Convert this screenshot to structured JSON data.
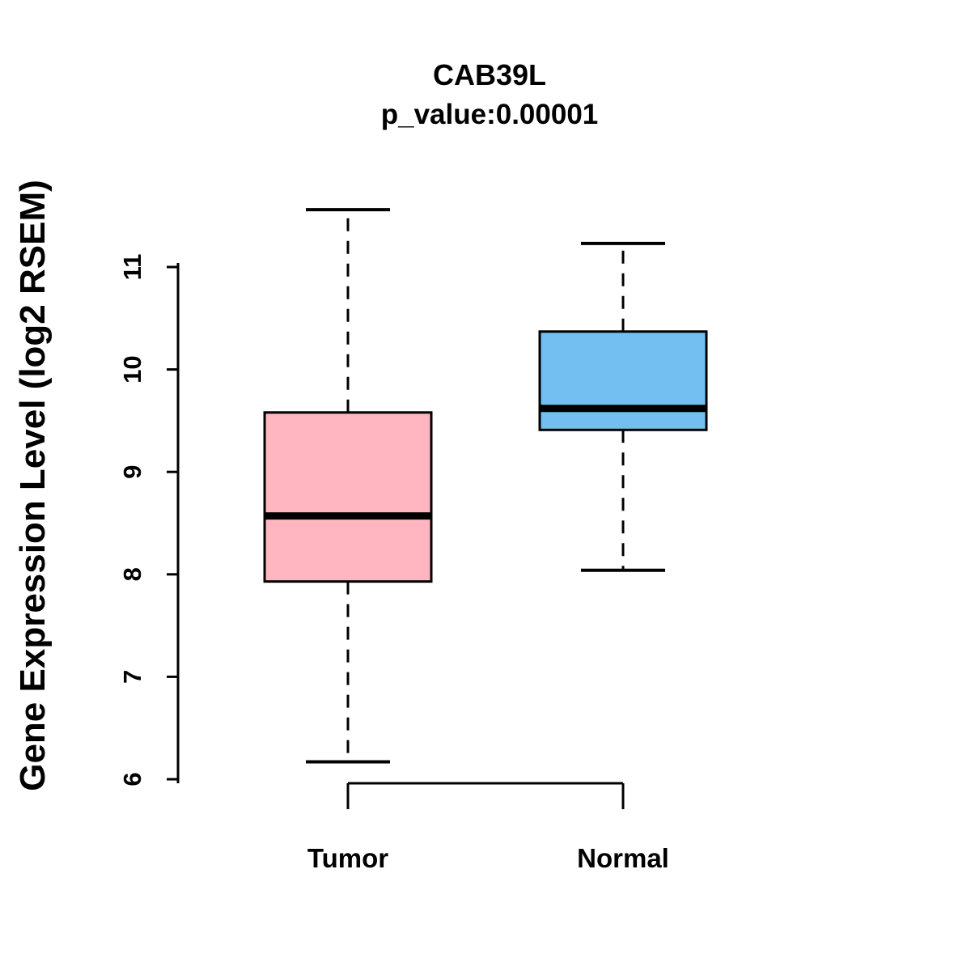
{
  "title": "CAB39L",
  "subtitle": "p_value:0.00001",
  "ylabel": "Gene Expression Level (log2 RSEM)",
  "colors": {
    "tumor_fill": "#FFB6C1",
    "normal_fill": "#74BFF2",
    "stroke": "#000000",
    "background": "#FFFFFF"
  },
  "chart_data": {
    "type": "boxplot",
    "title": "CAB39L",
    "subtitle": "p_value:0.00001",
    "xlabel": "",
    "ylabel": "Gene Expression Level (log2 RSEM)",
    "categories": [
      "Tumor",
      "Normal"
    ],
    "yticks": [
      6,
      7,
      8,
      9,
      10,
      11
    ],
    "ylim": [
      5.8,
      11.7
    ],
    "grid": false,
    "legend": "none",
    "series": [
      {
        "name": "Tumor",
        "color": "#FFB6C1",
        "whisker_low": 6.17,
        "q1": 7.93,
        "median": 8.57,
        "q3": 9.58,
        "whisker_high": 11.56
      },
      {
        "name": "Normal",
        "color": "#74BFF2",
        "whisker_low": 8.04,
        "q1": 9.41,
        "median": 9.62,
        "q3": 10.37,
        "whisker_high": 11.23
      }
    ]
  }
}
